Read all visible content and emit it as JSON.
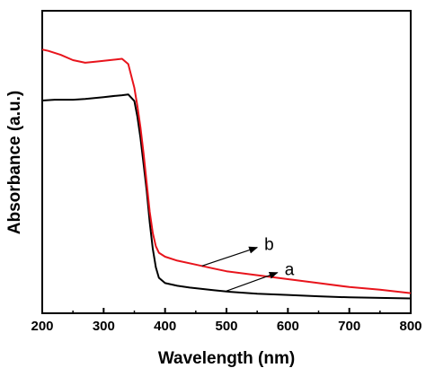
{
  "chart_data": {
    "type": "line",
    "title": "",
    "xlabel": "Wavelength (nm)",
    "ylabel": "Absorbance (a.u.)",
    "xlim": [
      200,
      800
    ],
    "ylim": [
      0,
      1
    ],
    "xticks": [
      200,
      300,
      400,
      500,
      600,
      700,
      800
    ],
    "xtick_labels": [
      "200",
      "300",
      "400",
      "500",
      "600",
      "700",
      "800"
    ],
    "yticks_labeled": false,
    "grid": false,
    "legend": "none",
    "series": [
      {
        "name": "a",
        "color": "#000000",
        "points": [
          [
            200,
            0.762
          ],
          [
            220,
            0.765
          ],
          [
            250,
            0.765
          ],
          [
            270,
            0.768
          ],
          [
            300,
            0.775
          ],
          [
            320,
            0.78
          ],
          [
            330,
            0.782
          ],
          [
            340,
            0.785
          ],
          [
            350,
            0.76
          ],
          [
            355,
            0.7
          ],
          [
            360,
            0.62
          ],
          [
            365,
            0.52
          ],
          [
            370,
            0.42
          ],
          [
            375,
            0.3
          ],
          [
            380,
            0.2
          ],
          [
            385,
            0.13
          ],
          [
            390,
            0.09
          ],
          [
            400,
            0.07
          ],
          [
            420,
            0.06
          ],
          [
            440,
            0.053
          ],
          [
            460,
            0.048
          ],
          [
            480,
            0.043
          ],
          [
            500,
            0.038
          ],
          [
            550,
            0.03
          ],
          [
            600,
            0.025
          ],
          [
            650,
            0.02
          ],
          [
            700,
            0.016
          ],
          [
            750,
            0.014
          ],
          [
            800,
            0.012
          ]
        ]
      },
      {
        "name": "b",
        "color": "#e8141c",
        "points": [
          [
            200,
            0.955
          ],
          [
            210,
            0.95
          ],
          [
            230,
            0.935
          ],
          [
            250,
            0.915
          ],
          [
            270,
            0.905
          ],
          [
            290,
            0.91
          ],
          [
            310,
            0.915
          ],
          [
            330,
            0.92
          ],
          [
            340,
            0.9
          ],
          [
            350,
            0.81
          ],
          [
            355,
            0.74
          ],
          [
            360,
            0.66
          ],
          [
            365,
            0.56
          ],
          [
            370,
            0.45
          ],
          [
            375,
            0.34
          ],
          [
            380,
            0.26
          ],
          [
            385,
            0.21
          ],
          [
            390,
            0.185
          ],
          [
            400,
            0.17
          ],
          [
            420,
            0.155
          ],
          [
            450,
            0.14
          ],
          [
            480,
            0.125
          ],
          [
            500,
            0.115
          ],
          [
            550,
            0.1
          ],
          [
            600,
            0.085
          ],
          [
            650,
            0.07
          ],
          [
            700,
            0.055
          ],
          [
            750,
            0.045
          ],
          [
            800,
            0.032
          ]
        ]
      }
    ],
    "annotations": [
      {
        "label": "b",
        "arrow_from": [
          460,
          0.135
        ],
        "arrow_to": [
          550,
          0.205
        ]
      },
      {
        "label": "a",
        "arrow_from": [
          500,
          0.04
        ],
        "arrow_to": [
          583,
          0.11
        ]
      }
    ]
  }
}
